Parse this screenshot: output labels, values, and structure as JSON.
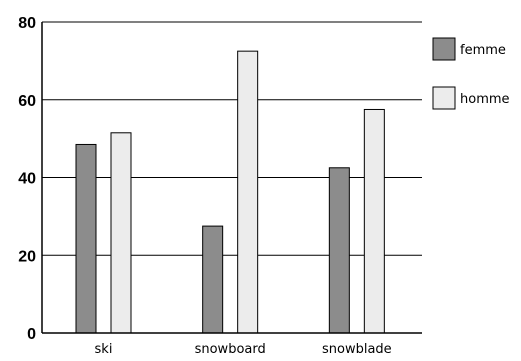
{
  "chart_data": {
    "type": "bar",
    "categories": [
      "ski",
      "snowboard",
      "snowblade"
    ],
    "series": [
      {
        "name": "femme",
        "values": [
          48.5,
          27.5,
          42.5
        ],
        "color": "#8c8c8c"
      },
      {
        "name": "homme",
        "values": [
          51.5,
          72.5,
          57.5
        ],
        "color": "#ececec"
      }
    ],
    "ylim": [
      0,
      80
    ],
    "yticks": [
      "0",
      "20",
      "40",
      "60",
      "80"
    ],
    "title": "",
    "xlabel": "",
    "ylabel": "",
    "grid": true,
    "legend_position": "right"
  }
}
